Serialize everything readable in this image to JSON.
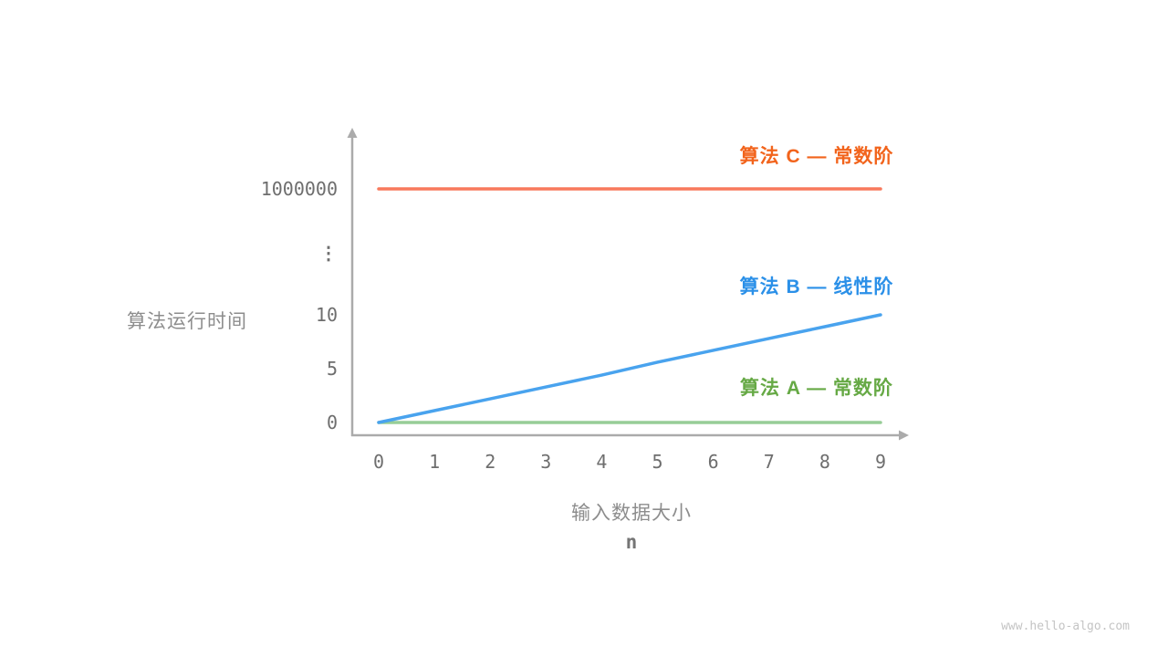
{
  "watermark": "www.hello-algo.com",
  "chart_data": {
    "type": "line",
    "title": "",
    "grid": false,
    "legend_position": "inline-right-of-plot",
    "axis_color": "#ABABAB",
    "tick_text_color": "#6E6E6E",
    "axis_title_color": "#8D8D8D",
    "x_axis": {
      "title": "输入数据大小",
      "variable": "n",
      "ticks": [
        "0",
        "1",
        "2",
        "3",
        "4",
        "5",
        "6",
        "7",
        "8",
        "9"
      ],
      "range": [
        0,
        9
      ]
    },
    "y_axis": {
      "title": "算法运行时间",
      "broken_axis": true,
      "ticks": [
        {
          "label": "0",
          "value": 0
        },
        {
          "label": "5",
          "value": 5
        },
        {
          "label": "10",
          "value": 10
        },
        {
          "label": "⋮",
          "value": null
        },
        {
          "label": "1000000",
          "value": 1000000
        }
      ]
    },
    "series": [
      {
        "name": "算法 C — 常数阶",
        "complexity": "constant",
        "line_color": "#F8795C",
        "label_color": "#F2641C",
        "values": [
          1000000,
          1000000,
          1000000,
          1000000,
          1000000,
          1000000,
          1000000,
          1000000,
          1000000,
          1000000
        ]
      },
      {
        "name": "算法 B — 线性阶",
        "complexity": "linear",
        "line_color": "#49A3EE",
        "label_color": "#2B90E8",
        "values": [
          0,
          1.1,
          2.2,
          3.3,
          4.4,
          5.6,
          6.7,
          7.8,
          8.9,
          10
        ]
      },
      {
        "name": "算法 A — 常数阶",
        "complexity": "constant",
        "line_color": "#97CD97",
        "label_color": "#66A945",
        "values": [
          0,
          0,
          0,
          0,
          0,
          0,
          0,
          0,
          0,
          0
        ]
      }
    ]
  }
}
